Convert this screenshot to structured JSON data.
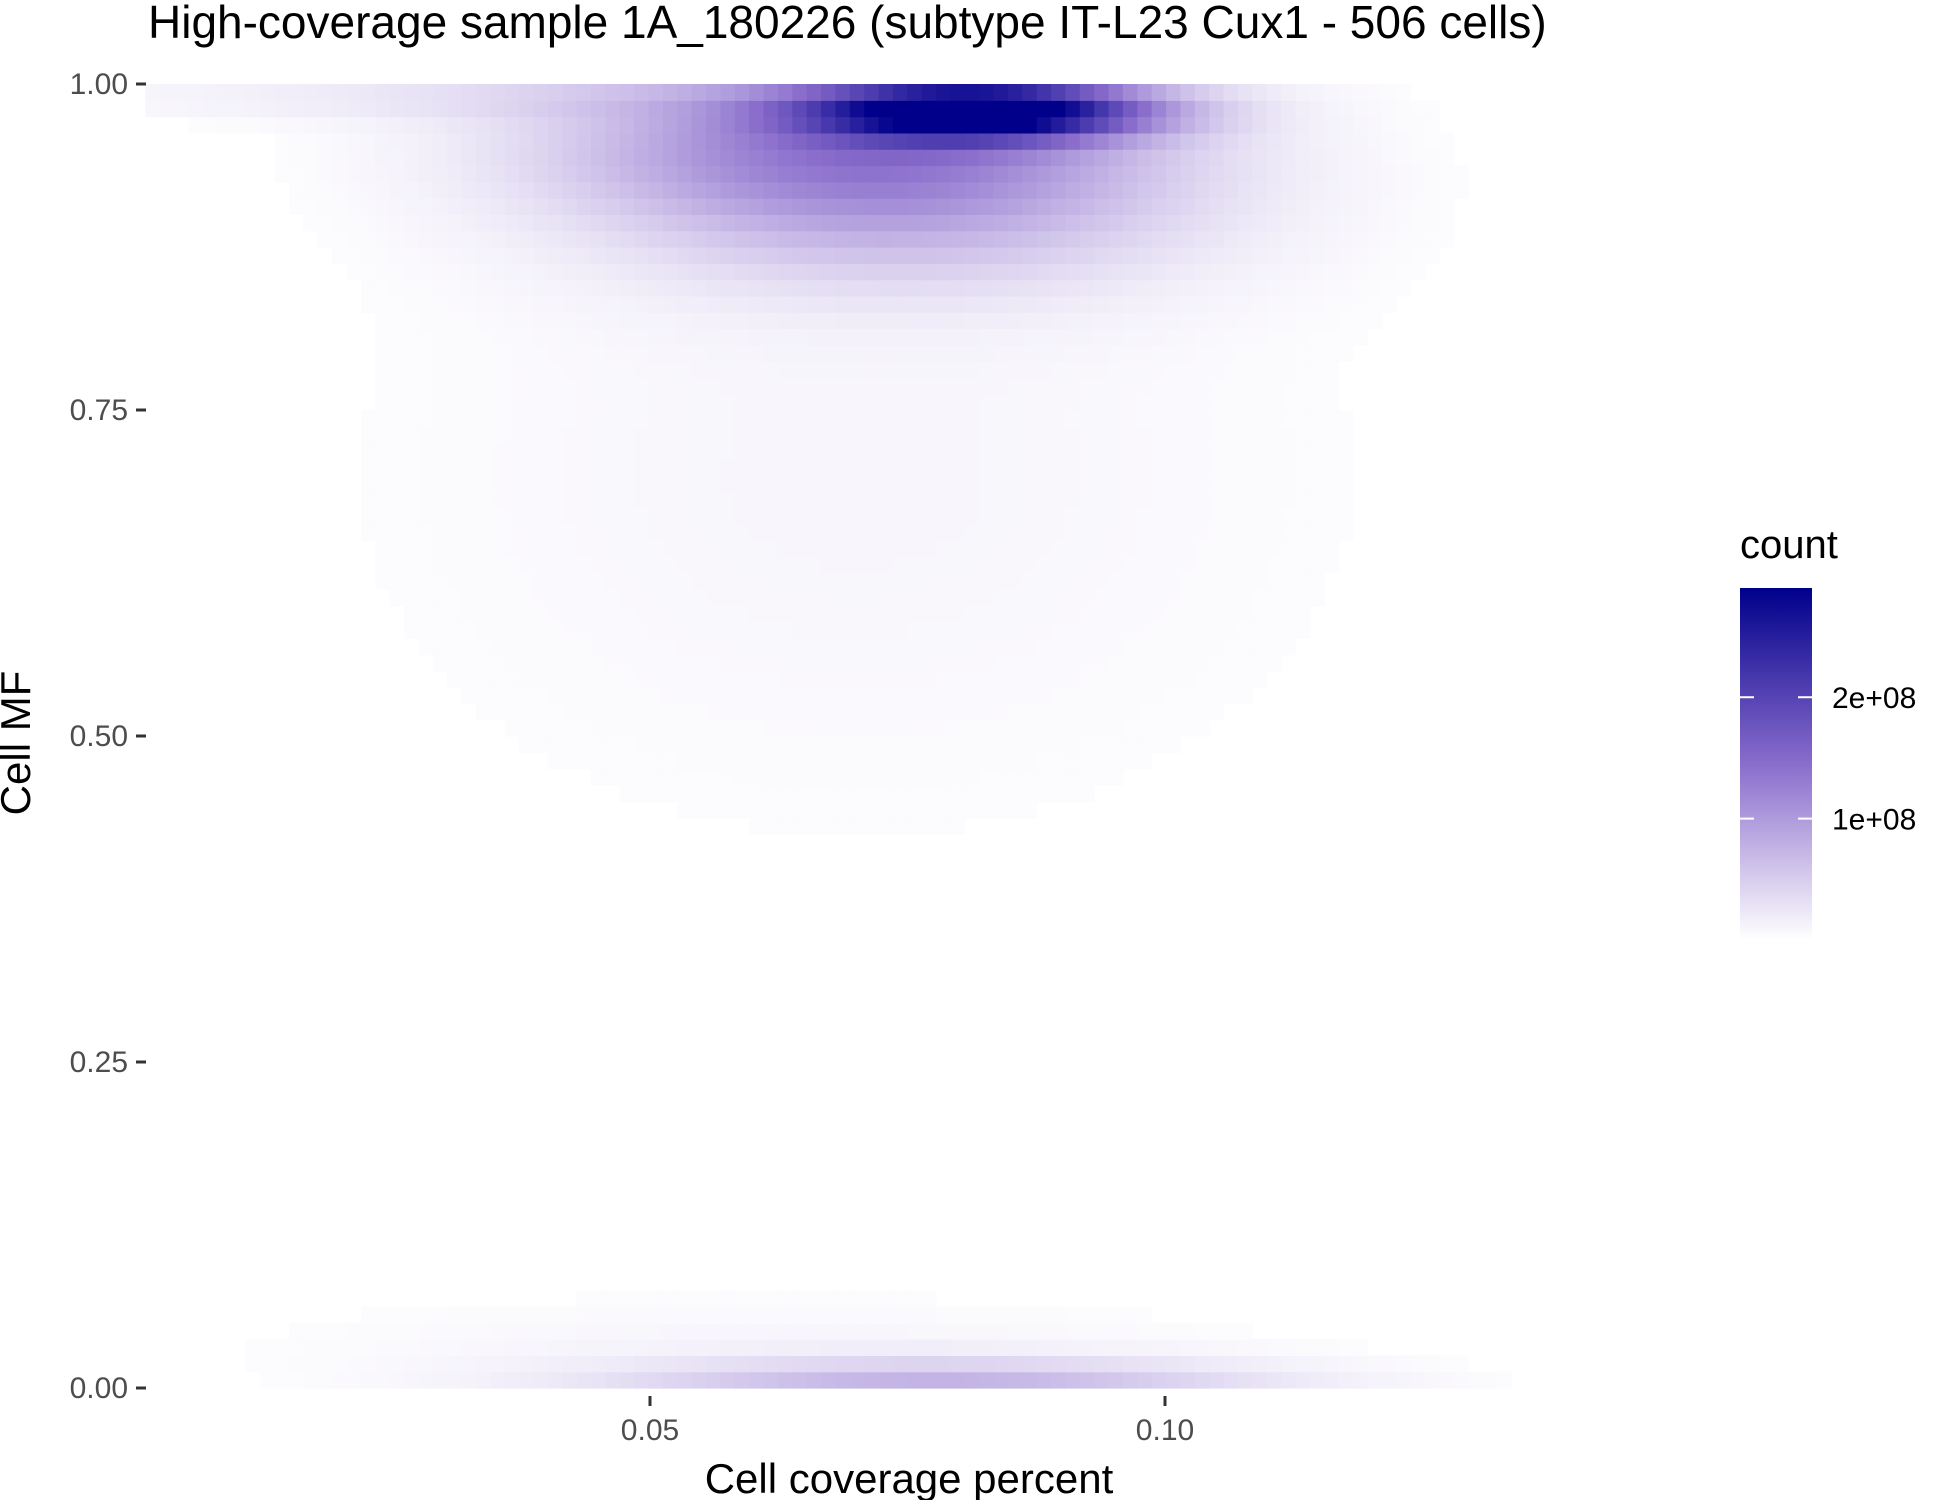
{
  "chart_data": {
    "type": "heatmap",
    "title": "High-coverage sample 1A_180226 (subtype IT-L23 Cux1 - 506 cells)",
    "xlabel": "Cell coverage percent",
    "ylabel": "Cell MF",
    "x_ticks": [
      {
        "value": 0.05,
        "label": "0.05"
      },
      {
        "value": 0.1,
        "label": "0.10"
      }
    ],
    "y_ticks": [
      {
        "value": 0.0,
        "label": "0.00"
      },
      {
        "value": 0.25,
        "label": "0.25"
      },
      {
        "value": 0.5,
        "label": "0.50"
      },
      {
        "value": 0.75,
        "label": "0.75"
      },
      {
        "value": 1.0,
        "label": "1.00"
      }
    ],
    "xlim": [
      0.001,
      0.164
    ],
    "ylim": [
      0.0,
      1.0
    ],
    "grid": false,
    "legend": {
      "title": "count",
      "placement": "right",
      "range": [
        0,
        290000000
      ],
      "breaks": [
        {
          "value": 100000000,
          "label": "1e+08"
        },
        {
          "value": 200000000,
          "label": "2e+08"
        }
      ]
    },
    "colors": {
      "low": "#ffffff",
      "mid": "#8a6dcc",
      "high": "#00008b"
    },
    "density_components": [
      {
        "x": 0.082,
        "y": 0.98,
        "sx": 0.011,
        "sy": 0.015,
        "count": 290000000
      },
      {
        "x": 0.07,
        "y": 0.955,
        "sx": 0.02,
        "sy": 0.04,
        "count": 110000000
      },
      {
        "x": 0.075,
        "y": 0.9,
        "sx": 0.02,
        "sy": 0.045,
        "count": 55000000
      },
      {
        "x": 0.04,
        "y": 0.99,
        "sx": 0.03,
        "sy": 0.012,
        "count": 22000000
      },
      {
        "x": 0.07,
        "y": 0.7,
        "sx": 0.035,
        "sy": 0.2,
        "count": 9000000
      },
      {
        "x": 0.078,
        "y": 0.0,
        "sx": 0.022,
        "sy": 0.015,
        "count": 75000000
      },
      {
        "x": 0.06,
        "y": 0.03,
        "sx": 0.035,
        "sy": 0.03,
        "count": 9000000
      }
    ]
  }
}
